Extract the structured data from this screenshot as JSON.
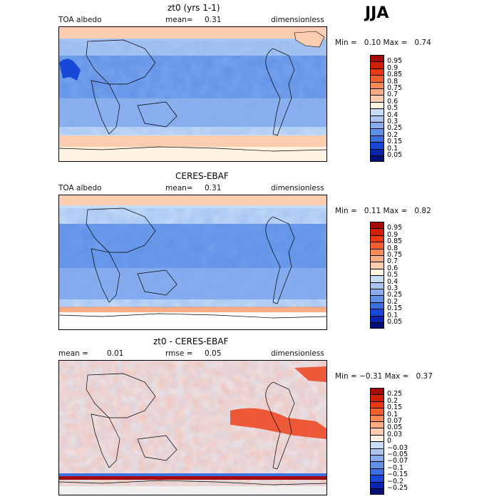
{
  "season": "JJA",
  "panels": [
    {
      "title": "zt0 (yrs 1-1)",
      "left_label": "TOA albedo",
      "mean_label": "mean=",
      "mean_value": "0.31",
      "units": "dimensionless",
      "min_label": "Min =",
      "min_value": "0.10",
      "max_label": "Max =",
      "max_value": "0.74",
      "levels": [
        "0.95",
        "0.9",
        "0.85",
        "0.8",
        "0.75",
        "0.7",
        "0.6",
        "0.5",
        "0.4",
        "0.3",
        "0.25",
        "0.2",
        "0.15",
        "0.1",
        "0.05"
      ],
      "colors": [
        "#a50a0a",
        "#cf1f05",
        "#ee3a10",
        "#f6602c",
        "#fb8a55",
        "#fcac83",
        "#fccdb1",
        "#fff3e3",
        "#c7dcf5",
        "#a9c5f0",
        "#88acec",
        "#6090e6",
        "#3a70e0",
        "#1748d8",
        "#0a24b0",
        "#04107a"
      ]
    },
    {
      "title": "CERES-EBAF",
      "left_label": "TOA albedo",
      "mean_label": "mean=",
      "mean_value": "0.31",
      "units": "dimensionless",
      "min_label": "Min =",
      "min_value": "0.11",
      "max_label": "Max =",
      "max_value": "0.82",
      "levels": [
        "0.95",
        "0.9",
        "0.85",
        "0.8",
        "0.75",
        "0.7",
        "0.6",
        "0.5",
        "0.4",
        "0.3",
        "0.25",
        "0.2",
        "0.15",
        "0.1",
        "0.05"
      ],
      "colors": [
        "#a50a0a",
        "#cf1f05",
        "#ee3a10",
        "#f6602c",
        "#fb8a55",
        "#fcac83",
        "#fccdb1",
        "#fff3e3",
        "#c7dcf5",
        "#a9c5f0",
        "#88acec",
        "#6090e6",
        "#3a70e0",
        "#1748d8",
        "#0a24b0",
        "#04107a"
      ]
    },
    {
      "title": "zt0 - CERES-EBAF",
      "left_label": "mean =",
      "left_value": "0.01",
      "mean_label": "rmse =",
      "mean_value": "0.05",
      "units": "dimensionless",
      "min_label": "Min =",
      "min_value": "−0.31",
      "max_label": "Max =",
      "max_value": "0.37",
      "levels": [
        "0.25",
        "0.2",
        "0.15",
        "0.1",
        "0.07",
        "0.05",
        "0.03",
        "0",
        "−0.03",
        "−0.05",
        "−0.07",
        "−0.1",
        "−0.15",
        "−0.2",
        "−0.25"
      ],
      "colors": [
        "#a50a0a",
        "#cf1f05",
        "#ee3a10",
        "#f6602c",
        "#fb8a55",
        "#fcac83",
        "#fccdb1",
        "#fff3e3",
        "#c7dcf5",
        "#a9c5f0",
        "#88acec",
        "#6090e6",
        "#3a70e0",
        "#1748d8",
        "#0a24b0",
        "#04107a"
      ]
    }
  ]
}
